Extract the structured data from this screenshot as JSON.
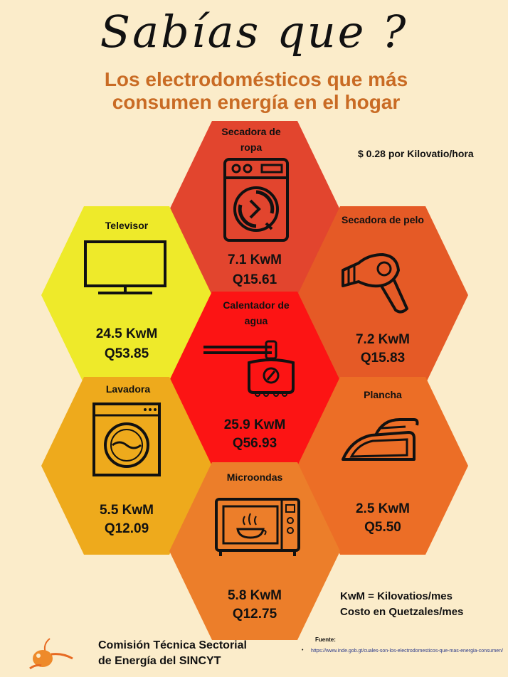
{
  "header": {
    "title": "Sabías que ?",
    "subtitle": "Los electrodomésticos que más consumen energía en el hogar",
    "price_note": "$ 0.28 por Kilovatio/hora"
  },
  "appliances": [
    {
      "label": "Secadora de ropa",
      "kwm": "7.1 KwM",
      "cost": "Q15.61",
      "color": "#e2452e",
      "icon": "clothes-dryer-icon"
    },
    {
      "label": "Televisor",
      "kwm": "24.5 KwM",
      "cost": "Q53.85",
      "color": "#eeea2a",
      "icon": "television-icon"
    },
    {
      "label": "Secadora de pelo",
      "kwm": "7.2 KwM",
      "cost": "Q15.83",
      "color": "#e55a26",
      "icon": "hair-dryer-icon"
    },
    {
      "label": "Calentador de agua",
      "kwm": "25.9 KwM",
      "cost": "Q56.93",
      "color": "#fc1414",
      "icon": "water-heater-icon"
    },
    {
      "label": "Lavadora",
      "kwm": "5.5 KwM",
      "cost": "Q12.09",
      "color": "#eeaa1c",
      "icon": "washing-machine-icon"
    },
    {
      "label": "Plancha",
      "kwm": "2.5 KwM",
      "cost": "Q5.50",
      "color": "#ec6e26",
      "icon": "iron-icon"
    },
    {
      "label": "Microondas",
      "kwm": "5.8 KwM",
      "cost": "Q12.75",
      "color": "#ec7e2a",
      "icon": "microwave-icon"
    }
  ],
  "legend": {
    "line1": "KwM = Kilovatios/mes",
    "line2": "Costo en Quetzales/mes"
  },
  "footer": {
    "org_line1": "Comisión Técnica Sectorial",
    "org_line2": "de Energía del SINCYT",
    "source_title": "Fuente:",
    "source_bullet": "•",
    "source_url": "https://www.inde.gob.gt/cuales-son-los-electrodomesticos-que-mas-energia-consumen/"
  }
}
